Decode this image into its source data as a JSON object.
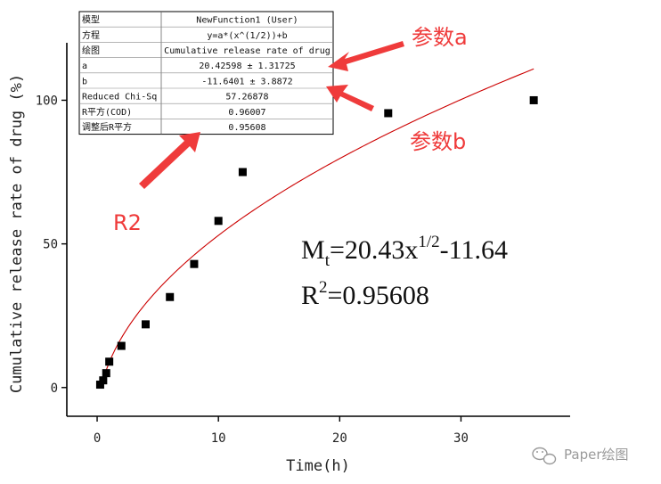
{
  "chart_data": {
    "type": "scatter",
    "xlabel": "Time(h)",
    "ylabel": "Cumulative release rate of drug (%)",
    "xlim": [
      -2.5,
      39
    ],
    "ylim": [
      -10,
      120
    ],
    "xticks": [
      0,
      10,
      20,
      30
    ],
    "yticks": [
      0,
      50,
      100
    ],
    "grid": false,
    "series": [
      {
        "type": "scatter",
        "marker": "square",
        "color": "#000000",
        "x": [
          0.25,
          0.5,
          0.75,
          1,
          2,
          4,
          6,
          8,
          10,
          12,
          24,
          36
        ],
        "y": [
          1,
          2.5,
          5,
          9,
          14.5,
          22,
          31.5,
          43,
          58,
          75,
          95.5,
          100
        ]
      },
      {
        "type": "fit-line",
        "color": "#cc0000",
        "model": "y=a*x^(1/2)+b",
        "a": 20.42598,
        "b": -11.6401,
        "x_start": 0.33,
        "x_end": 36
      }
    ],
    "fit_table": {
      "rows": [
        [
          "模型",
          "NewFunction1 (User)"
        ],
        [
          "方程",
          "y=a*(x^(1/2))+b"
        ],
        [
          "绘图",
          "Cumulative release rate of drug"
        ],
        [
          "a",
          "20.42598 ± 1.31725"
        ],
        [
          "b",
          "-11.6401 ± 3.8872"
        ],
        [
          "Reduced Chi-Sq",
          "57.26878"
        ],
        [
          "R平方(COD)",
          "0.96007"
        ],
        [
          "调整后R平方",
          "0.95608"
        ]
      ]
    },
    "annotations": {
      "label_a": "参数a",
      "label_b": "参数b",
      "label_r2": "R2",
      "color": "#ef3b3b"
    },
    "equation": {
      "main": "M",
      "sub": "t",
      "middle": "=20.43x",
      "sup": "1/2",
      "tail": "-11.64",
      "r": "R",
      "r_sup": "2",
      "r_tail": "=0.95608"
    }
  },
  "watermark": {
    "icon": "wechat-icon",
    "text": "Paper绘图"
  }
}
